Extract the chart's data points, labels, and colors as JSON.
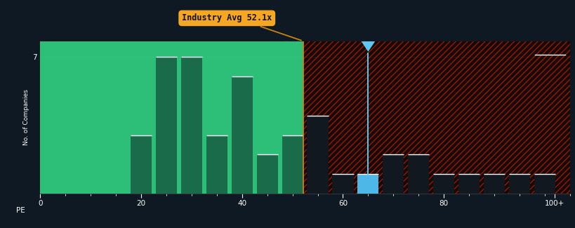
{
  "background_color": "#0f1923",
  "plot_bg_green": "#2dbe78",
  "bar_green_dark": "#1a6b4a",
  "bar_blue": "#4db8e8",
  "bar_dark": "#111820",
  "industry_avg": 52.1,
  "company_pe": 65,
  "bar_centers": [
    10,
    20,
    25,
    30,
    35,
    40,
    45,
    50,
    55,
    60,
    65,
    70,
    75,
    80,
    85,
    90,
    95,
    100
  ],
  "bar_heights": [
    0,
    3,
    7,
    7,
    3,
    6,
    2,
    3,
    4,
    1,
    1,
    2,
    2,
    1,
    1,
    1,
    1,
    1
  ],
  "bar_width": 4.2,
  "x_min": 0,
  "x_max": 105,
  "y_min": 0,
  "y_max": 7.8,
  "xlabel": "PE",
  "ylabel": "No. of Companies",
  "annotation_text": "Industry Avg 52.1x",
  "annotation_bg": "#f5a623",
  "annotation_text_color": "#111111",
  "industry_line_color": "#c8860a",
  "company_line_color": "#5bc8f5",
  "x_ticks": [
    0,
    20,
    40,
    60,
    80
  ],
  "x_tick_labels": [
    "0",
    "20",
    "40",
    "60",
    "80"
  ],
  "x_last_label": "100+",
  "x_last_pos": 102,
  "white_text_color": "#ffffff",
  "hatch_color": "#cc2200",
  "red_bg_color": "#180808"
}
